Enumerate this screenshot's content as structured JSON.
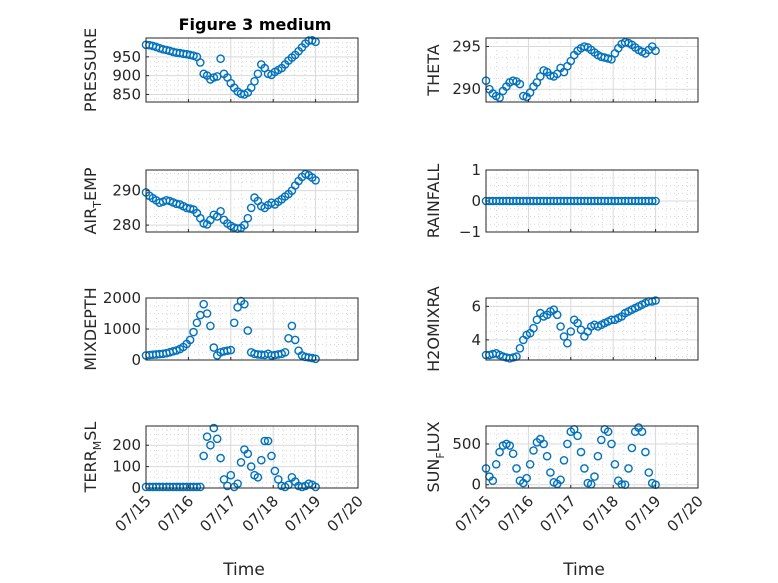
{
  "figure_title": "Figure 3 medium",
  "colors": {
    "marker": "#0072BD",
    "axes": "#262626",
    "grid": "#d9d9d9",
    "background": "#ffffff"
  },
  "chart_data": [
    {
      "type": "scatter",
      "title": "Figure 3 medium",
      "ylabel_parts": [
        {
          "t": "PRESSURE"
        }
      ],
      "xlabel": "",
      "xlim": [
        0,
        5
      ],
      "ylim": [
        830,
        1000
      ],
      "yticks": [
        850,
        900,
        950
      ],
      "xtick_labels": [],
      "grid": true,
      "minor_grid": true,
      "series": [
        {
          "x": [
            0.0,
            0.08,
            0.16,
            0.24,
            0.32,
            0.4,
            0.48,
            0.56,
            0.64,
            0.72,
            0.8,
            0.88,
            0.96,
            1.04,
            1.12,
            1.2,
            1.28,
            1.36,
            1.44,
            1.52,
            1.6,
            1.68,
            1.76,
            1.84,
            1.92,
            2.0,
            2.08,
            2.16,
            2.24,
            2.32,
            2.4,
            2.48,
            2.56,
            2.64,
            2.72,
            2.8,
            2.88,
            2.96,
            3.04,
            3.12,
            3.2,
            3.28,
            3.36,
            3.44,
            3.52,
            3.6,
            3.68,
            3.76,
            3.84,
            3.92,
            4.0
          ],
          "y": [
            982,
            981,
            979,
            976,
            973,
            970,
            968,
            966,
            963,
            961,
            960,
            958,
            957,
            955,
            953,
            950,
            935,
            905,
            900,
            890,
            895,
            898,
            945,
            905,
            895,
            880,
            868,
            858,
            852,
            850,
            855,
            868,
            885,
            905,
            930,
            920,
            905,
            902,
            910,
            915,
            920,
            930,
            940,
            948,
            955,
            965,
            975,
            985,
            993,
            994,
            990
          ]
        }
      ]
    },
    {
      "type": "scatter",
      "title": "",
      "ylabel_parts": [
        {
          "t": "THETA"
        }
      ],
      "xlabel": "",
      "xlim": [
        0,
        5
      ],
      "ylim": [
        288.5,
        296
      ],
      "yticks": [
        290,
        295
      ],
      "xtick_labels": [],
      "grid": true,
      "minor_grid": true,
      "series": [
        {
          "x": [
            0.0,
            0.08,
            0.16,
            0.24,
            0.32,
            0.4,
            0.48,
            0.56,
            0.64,
            0.72,
            0.8,
            0.88,
            0.96,
            1.04,
            1.12,
            1.2,
            1.28,
            1.36,
            1.44,
            1.52,
            1.6,
            1.68,
            1.76,
            1.84,
            1.92,
            2.0,
            2.08,
            2.16,
            2.24,
            2.32,
            2.4,
            2.48,
            2.56,
            2.64,
            2.72,
            2.8,
            2.88,
            2.96,
            3.04,
            3.12,
            3.2,
            3.28,
            3.36,
            3.44,
            3.52,
            3.6,
            3.68,
            3.76,
            3.84,
            3.92,
            4.0
          ],
          "y": [
            291.0,
            290.0,
            289.5,
            289.2,
            289.0,
            289.8,
            290.3,
            290.8,
            291.0,
            290.9,
            290.6,
            289.2,
            289.1,
            289.6,
            290.3,
            290.8,
            291.5,
            292.2,
            292.0,
            291.6,
            291.5,
            291.8,
            292.5,
            292.0,
            292.7,
            293.3,
            294.0,
            294.5,
            294.8,
            295.0,
            294.9,
            294.6,
            294.3,
            294.0,
            293.8,
            293.7,
            293.6,
            293.5,
            294.2,
            294.8,
            295.3,
            295.5,
            295.4,
            295.2,
            294.9,
            294.6,
            294.4,
            294.2,
            294.6,
            295.0,
            294.5
          ]
        }
      ]
    },
    {
      "type": "scatter",
      "title": "",
      "ylabel_parts": [
        {
          "t": "AIR"
        },
        {
          "t": "T",
          "sub": true
        },
        {
          "t": "EMP"
        }
      ],
      "xlabel": "",
      "xlim": [
        0,
        5
      ],
      "ylim": [
        278,
        296
      ],
      "yticks": [
        280,
        290
      ],
      "xtick_labels": [],
      "grid": true,
      "minor_grid": true,
      "series": [
        {
          "x": [
            0.0,
            0.08,
            0.16,
            0.24,
            0.32,
            0.4,
            0.48,
            0.56,
            0.64,
            0.72,
            0.8,
            0.88,
            0.96,
            1.04,
            1.12,
            1.2,
            1.28,
            1.36,
            1.44,
            1.52,
            1.6,
            1.68,
            1.76,
            1.84,
            1.92,
            2.0,
            2.08,
            2.16,
            2.24,
            2.32,
            2.4,
            2.48,
            2.56,
            2.64,
            2.72,
            2.8,
            2.88,
            2.96,
            3.04,
            3.12,
            3.2,
            3.28,
            3.36,
            3.44,
            3.52,
            3.6,
            3.68,
            3.76,
            3.84,
            3.92,
            4.0
          ],
          "y": [
            289.5,
            288.5,
            287.8,
            287.2,
            286.5,
            286.8,
            287.2,
            287.0,
            286.6,
            286.2,
            286.0,
            285.5,
            285.0,
            284.8,
            284.5,
            283.5,
            282.0,
            280.5,
            280.2,
            281.5,
            283.0,
            282.5,
            284.0,
            281.5,
            280.5,
            279.8,
            279.3,
            279.0,
            279.2,
            280.0,
            282.0,
            285.0,
            288.0,
            287.0,
            285.5,
            285.0,
            285.8,
            286.5,
            286.0,
            286.8,
            287.5,
            288.3,
            289.0,
            290.0,
            291.5,
            292.8,
            294.0,
            294.8,
            294.5,
            293.8,
            293.0
          ]
        }
      ]
    },
    {
      "type": "scatter",
      "title": "",
      "ylabel_parts": [
        {
          "t": "RAINFALL"
        }
      ],
      "xlabel": "",
      "xlim": [
        0,
        5
      ],
      "ylim": [
        -1,
        1
      ],
      "yticks": [
        -1,
        0,
        1
      ],
      "xtick_labels": [],
      "grid": true,
      "minor_grid": true,
      "series": [
        {
          "x": [
            0.0,
            0.08,
            0.16,
            0.24,
            0.32,
            0.4,
            0.48,
            0.56,
            0.64,
            0.72,
            0.8,
            0.88,
            0.96,
            1.04,
            1.12,
            1.2,
            1.28,
            1.36,
            1.44,
            1.52,
            1.6,
            1.68,
            1.76,
            1.84,
            1.92,
            2.0,
            2.08,
            2.16,
            2.24,
            2.32,
            2.4,
            2.48,
            2.56,
            2.64,
            2.72,
            2.8,
            2.88,
            2.96,
            3.04,
            3.12,
            3.2,
            3.28,
            3.36,
            3.44,
            3.52,
            3.6,
            3.68,
            3.76,
            3.84,
            3.92,
            4.0
          ],
          "y": [
            0,
            0,
            0,
            0,
            0,
            0,
            0,
            0,
            0,
            0,
            0,
            0,
            0,
            0,
            0,
            0,
            0,
            0,
            0,
            0,
            0,
            0,
            0,
            0,
            0,
            0,
            0,
            0,
            0,
            0,
            0,
            0,
            0,
            0,
            0,
            0,
            0,
            0,
            0,
            0,
            0,
            0,
            0,
            0,
            0,
            0,
            0,
            0,
            0,
            0,
            0
          ]
        }
      ]
    },
    {
      "type": "scatter",
      "title": "",
      "ylabel_parts": [
        {
          "t": "MIXDEPTH"
        }
      ],
      "xlabel": "",
      "xlim": [
        0,
        5
      ],
      "ylim": [
        0,
        2000
      ],
      "yticks": [
        0,
        1000,
        2000
      ],
      "xtick_labels": [],
      "grid": true,
      "minor_grid": true,
      "series": [
        {
          "x": [
            0.0,
            0.08,
            0.16,
            0.24,
            0.32,
            0.4,
            0.48,
            0.56,
            0.64,
            0.72,
            0.8,
            0.88,
            0.96,
            1.04,
            1.12,
            1.2,
            1.28,
            1.36,
            1.44,
            1.52,
            1.6,
            1.68,
            1.76,
            1.84,
            1.92,
            2.0,
            2.08,
            2.16,
            2.24,
            2.32,
            2.4,
            2.48,
            2.56,
            2.64,
            2.72,
            2.8,
            2.88,
            2.96,
            3.04,
            3.12,
            3.2,
            3.28,
            3.36,
            3.44,
            3.52,
            3.6,
            3.68,
            3.76,
            3.84,
            3.92,
            4.0
          ],
          "y": [
            150,
            160,
            170,
            180,
            190,
            200,
            220,
            250,
            280,
            310,
            350,
            420,
            520,
            650,
            900,
            1200,
            1450,
            1800,
            1500,
            1100,
            400,
            150,
            250,
            280,
            300,
            320,
            1200,
            1700,
            1900,
            1800,
            950,
            250,
            200,
            180,
            170,
            160,
            200,
            150,
            160,
            180,
            200,
            250,
            700,
            1100,
            650,
            300,
            150,
            100,
            80,
            60,
            40
          ]
        }
      ]
    },
    {
      "type": "scatter",
      "title": "",
      "ylabel_parts": [
        {
          "t": "H2OMIXRA"
        }
      ],
      "xlabel": "",
      "xlim": [
        0,
        5
      ],
      "ylim": [
        2.8,
        6.5
      ],
      "yticks": [
        4,
        6
      ],
      "xtick_labels": [],
      "grid": true,
      "minor_grid": true,
      "series": [
        {
          "x": [
            0.0,
            0.08,
            0.16,
            0.24,
            0.32,
            0.4,
            0.48,
            0.56,
            0.64,
            0.72,
            0.8,
            0.88,
            0.96,
            1.04,
            1.12,
            1.2,
            1.28,
            1.36,
            1.44,
            1.52,
            1.6,
            1.68,
            1.76,
            1.84,
            1.92,
            2.0,
            2.08,
            2.16,
            2.24,
            2.32,
            2.4,
            2.48,
            2.56,
            2.64,
            2.72,
            2.8,
            2.88,
            2.96,
            3.04,
            3.12,
            3.2,
            3.28,
            3.36,
            3.44,
            3.52,
            3.6,
            3.68,
            3.76,
            3.84,
            3.92,
            4.0
          ],
          "y": [
            3.1,
            3.1,
            3.15,
            3.2,
            3.1,
            3.0,
            2.95,
            2.9,
            2.95,
            3.0,
            3.5,
            4.0,
            4.3,
            4.4,
            4.7,
            5.2,
            5.6,
            5.4,
            5.5,
            5.7,
            5.8,
            5.5,
            4.8,
            4.2,
            3.8,
            4.5,
            5.2,
            5.0,
            4.6,
            4.2,
            4.5,
            4.8,
            4.9,
            4.8,
            4.9,
            5.0,
            5.1,
            5.2,
            5.2,
            5.3,
            5.4,
            5.6,
            5.7,
            5.8,
            5.9,
            6.0,
            6.1,
            6.2,
            6.3,
            6.3,
            6.35
          ]
        }
      ]
    },
    {
      "type": "scatter",
      "title": "",
      "ylabel_parts": [
        {
          "t": "TERR"
        },
        {
          "t": "M",
          "sub": true
        },
        {
          "t": "SL"
        }
      ],
      "xlabel": "Time",
      "xlim": [
        0,
        5
      ],
      "ylim": [
        0,
        290
      ],
      "yticks": [
        0,
        100,
        200
      ],
      "xtick_labels": [
        "07/15",
        "07/16",
        "07/17",
        "07/18",
        "07/19",
        "07/20"
      ],
      "grid": true,
      "minor_grid": true,
      "series": [
        {
          "x": [
            0.0,
            0.08,
            0.16,
            0.24,
            0.32,
            0.4,
            0.48,
            0.56,
            0.64,
            0.72,
            0.8,
            0.88,
            0.96,
            1.04,
            1.12,
            1.2,
            1.28,
            1.36,
            1.44,
            1.52,
            1.6,
            1.68,
            1.76,
            1.84,
            1.92,
            2.0,
            2.08,
            2.16,
            2.24,
            2.32,
            2.4,
            2.48,
            2.56,
            2.64,
            2.72,
            2.8,
            2.88,
            2.96,
            3.04,
            3.12,
            3.2,
            3.28,
            3.36,
            3.44,
            3.52,
            3.6,
            3.68,
            3.76,
            3.84,
            3.92,
            4.0
          ],
          "y": [
            5,
            5,
            5,
            5,
            5,
            5,
            5,
            5,
            5,
            5,
            5,
            5,
            5,
            5,
            5,
            5,
            5,
            150,
            240,
            200,
            280,
            230,
            140,
            40,
            10,
            60,
            5,
            20,
            120,
            180,
            160,
            100,
            60,
            50,
            130,
            220,
            220,
            150,
            80,
            40,
            10,
            5,
            15,
            50,
            30,
            10,
            5,
            10,
            20,
            15,
            5
          ]
        }
      ]
    },
    {
      "type": "scatter",
      "title": "",
      "ylabel_parts": [
        {
          "t": "SUN"
        },
        {
          "t": "F",
          "sub": true
        },
        {
          "t": "LUX"
        }
      ],
      "xlabel": "Time",
      "xlim": [
        0,
        5
      ],
      "ylim": [
        -40,
        720
      ],
      "yticks": [
        0,
        500
      ],
      "xtick_labels": [
        "07/15",
        "07/16",
        "07/17",
        "07/18",
        "07/19",
        "07/20"
      ],
      "grid": true,
      "minor_grid": true,
      "series": [
        {
          "x": [
            0.0,
            0.08,
            0.16,
            0.24,
            0.32,
            0.4,
            0.48,
            0.56,
            0.64,
            0.72,
            0.8,
            0.88,
            0.96,
            1.04,
            1.12,
            1.2,
            1.28,
            1.36,
            1.44,
            1.52,
            1.6,
            1.68,
            1.76,
            1.84,
            1.92,
            2.0,
            2.08,
            2.16,
            2.24,
            2.32,
            2.4,
            2.48,
            2.56,
            2.64,
            2.72,
            2.8,
            2.88,
            2.96,
            3.04,
            3.12,
            3.2,
            3.28,
            3.36,
            3.44,
            3.52,
            3.6,
            3.68,
            3.76,
            3.84,
            3.92,
            4.0
          ],
          "y": [
            200,
            100,
            50,
            250,
            400,
            480,
            500,
            480,
            380,
            200,
            50,
            20,
            80,
            250,
            420,
            520,
            560,
            500,
            350,
            150,
            30,
            10,
            60,
            300,
            500,
            650,
            680,
            600,
            400,
            200,
            20,
            5,
            100,
            350,
            550,
            680,
            650,
            500,
            250,
            50,
            5,
            0,
            200,
            450,
            650,
            700,
            650,
            400,
            150,
            20,
            0
          ]
        }
      ]
    }
  ]
}
